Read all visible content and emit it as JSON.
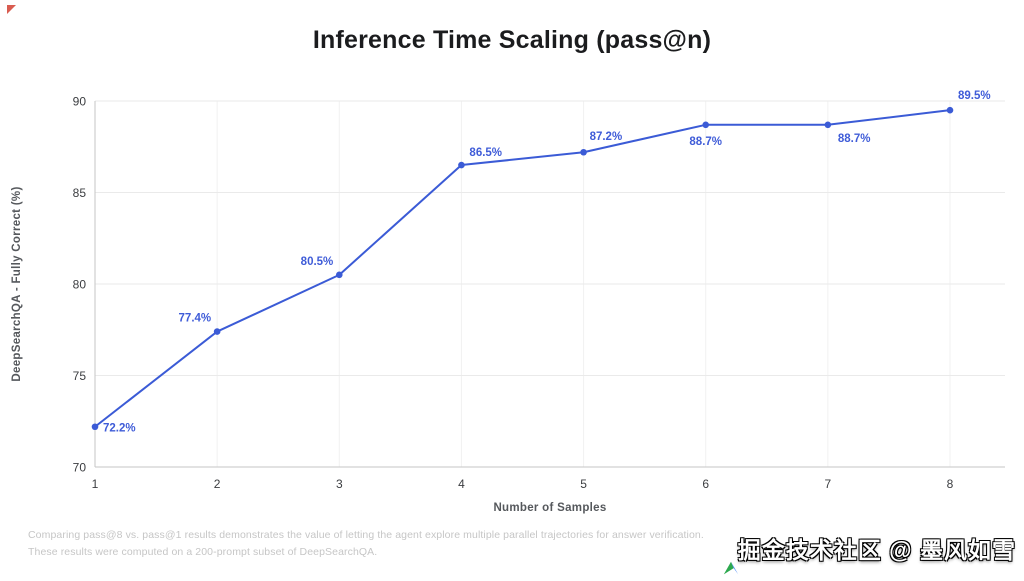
{
  "title": "Inference Time Scaling (pass@n)",
  "chart_data": {
    "type": "line",
    "title": "Inference Time Scaling (pass@n)",
    "xlabel": "Number of Samples",
    "ylabel": "DeepSearchQA - Fully Correct (%)",
    "x": [
      1,
      2,
      3,
      4,
      5,
      6,
      7,
      8
    ],
    "values": [
      72.2,
      77.4,
      80.5,
      86.5,
      87.2,
      88.7,
      88.7,
      89.5
    ],
    "point_labels": [
      "72.2%",
      "77.4%",
      "80.5%",
      "86.5%",
      "87.2%",
      "88.7%",
      "88.7%",
      "89.5%"
    ],
    "xticks": [
      1,
      2,
      3,
      4,
      5,
      6,
      7,
      8
    ],
    "yticks": [
      70,
      75,
      80,
      85,
      90
    ],
    "ylim": [
      70,
      90
    ],
    "xlim": [
      1,
      8
    ],
    "grid": true,
    "legend_position": "none",
    "line_color": "#3b5bd6",
    "label_color": "#3f5cd8"
  },
  "footer": {
    "line1": "Comparing pass@8 vs. pass@1 results demonstrates the value of letting the agent explore multiple parallel trajectories for answer verification.",
    "line2": "These results were computed on a 200-prompt subset of DeepSearchQA."
  },
  "watermark": {
    "text": "掘金技术社区 @ 墨风如雪",
    "logo_icon": "colored-arrow-logo"
  },
  "icons": {
    "corner_mark": "red-corner-mark"
  }
}
